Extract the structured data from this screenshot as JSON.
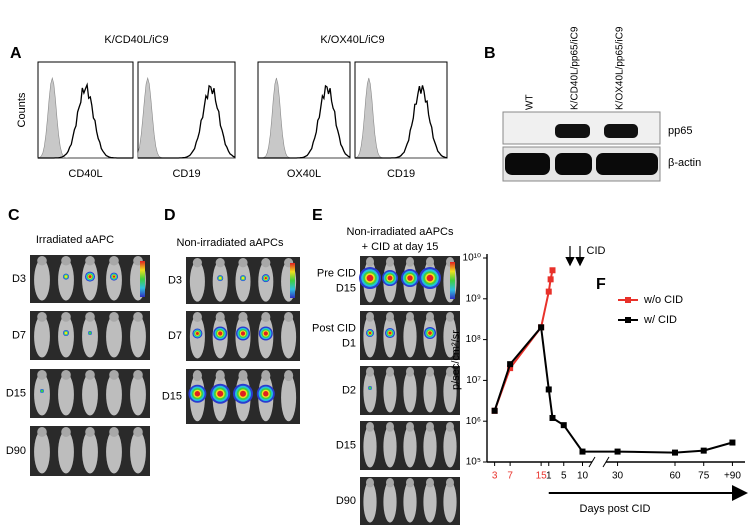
{
  "panel_a": {
    "label": "A",
    "y_label": "Counts",
    "groups": [
      {
        "title": "K/CD40L/iC9",
        "plots": [
          "CD40L",
          "CD19"
        ]
      },
      {
        "title": "K/OX40L/iC9",
        "plots": [
          "OX40L",
          "CD19"
        ]
      }
    ]
  },
  "panel_b": {
    "label": "B",
    "lanes": [
      "WT",
      "K/CD40L/pp65/iC9",
      "K/OX40L/pp65/iC9"
    ],
    "bands": [
      "pp65",
      "β-actin"
    ]
  },
  "panel_c": {
    "label": "C",
    "title": "Irradiated aAPC",
    "rows": [
      "D3",
      "D7",
      "D15",
      "D90"
    ]
  },
  "panel_d": {
    "label": "D",
    "title": "Non-irradiated aAPCs",
    "rows": [
      "D3",
      "D7",
      "D15"
    ]
  },
  "panel_e": {
    "label": "E",
    "title": [
      "Non-irradiated aAPCs",
      "+ CID at day 15"
    ],
    "rows": [
      [
        "Pre CID",
        "D15"
      ],
      [
        "Post CID",
        "D1"
      ],
      [
        "D2"
      ],
      [
        "D15"
      ],
      [
        "D90"
      ]
    ]
  },
  "chart_data": {
    "type": "line",
    "label": "F",
    "y_label": "p/sec/cm²/sr",
    "x_label": "Days post CID",
    "annotation": "CID",
    "log_y": true,
    "ylim": [
      100000,
      10000000000
    ],
    "yticks": [
      {
        "value": 100000,
        "label": "10⁵"
      },
      {
        "value": 1000000,
        "label": "10⁶"
      },
      {
        "value": 10000000,
        "label": "10⁷"
      },
      {
        "value": 100000000,
        "label": "10⁸"
      },
      {
        "value": 1000000000,
        "label": "10⁹"
      },
      {
        "value": 10000000000,
        "label": "10¹⁰"
      }
    ],
    "pre_xlim": [
      0,
      16
    ],
    "pre_xticks": [
      3,
      7,
      15
    ],
    "pre_tick_color": "#e8312a",
    "post_xlim": [
      0,
      95
    ],
    "post_xbreak": [
      12,
      25
    ],
    "post_xticks": [
      1,
      5,
      10,
      30,
      60,
      75,
      {
        "value": 90,
        "label": "+90"
      }
    ],
    "series": [
      {
        "name": "w/o CID",
        "color": "#e8312a",
        "pre_x": [
          3,
          7,
          15
        ],
        "pre_values": [
          1800000,
          20000000,
          200000000
        ],
        "post_x": [
          1,
          1.5,
          2
        ],
        "post_values": [
          1500000000,
          3000000000,
          5000000000
        ]
      },
      {
        "name": "w/ CID",
        "color": "#000000",
        "pre_x": [
          3,
          7,
          15
        ],
        "pre_values": [
          1800000,
          25000000,
          200000000
        ],
        "post_x": [
          1,
          2,
          5,
          10,
          30,
          60,
          75,
          90
        ],
        "post_values": [
          6000000,
          1200000,
          800000,
          180000,
          180000,
          170000,
          190000,
          300000
        ]
      }
    ]
  }
}
